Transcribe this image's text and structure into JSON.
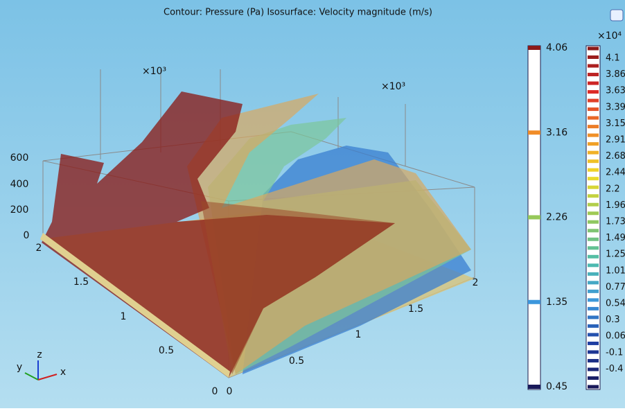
{
  "title": "Contour: Pressure (Pa)  Isosurface: Velocity magnitude (m/s)",
  "z_axis": {
    "multiplier": "×10³",
    "ticks": [
      "600",
      "400",
      "200",
      "0"
    ]
  },
  "y_axis": {
    "ticks": [
      "2",
      "1.5",
      "1",
      "0.5",
      "0"
    ]
  },
  "x_axis": {
    "multiplier": "×10³",
    "ticks": [
      "0",
      "0.5",
      "1",
      "1.5",
      "2"
    ]
  },
  "isosurface_legend": {
    "labels": [
      "4.06",
      "3.16",
      "2.26",
      "1.35",
      "0.45"
    ]
  },
  "contour_legend": {
    "multiplier": "×10⁴",
    "labels": [
      "4.1",
      "3.86",
      "3.63",
      "3.39",
      "3.15",
      "2.91",
      "2.68",
      "2.44",
      "2.2",
      "1.96",
      "1.73",
      "1.49",
      "1.25",
      "1.01",
      "0.77",
      "0.54",
      "0.3",
      "0.06",
      "-0.1",
      "-0.4"
    ]
  },
  "triad": {
    "z": "z",
    "y": "y",
    "x": "x"
  }
}
